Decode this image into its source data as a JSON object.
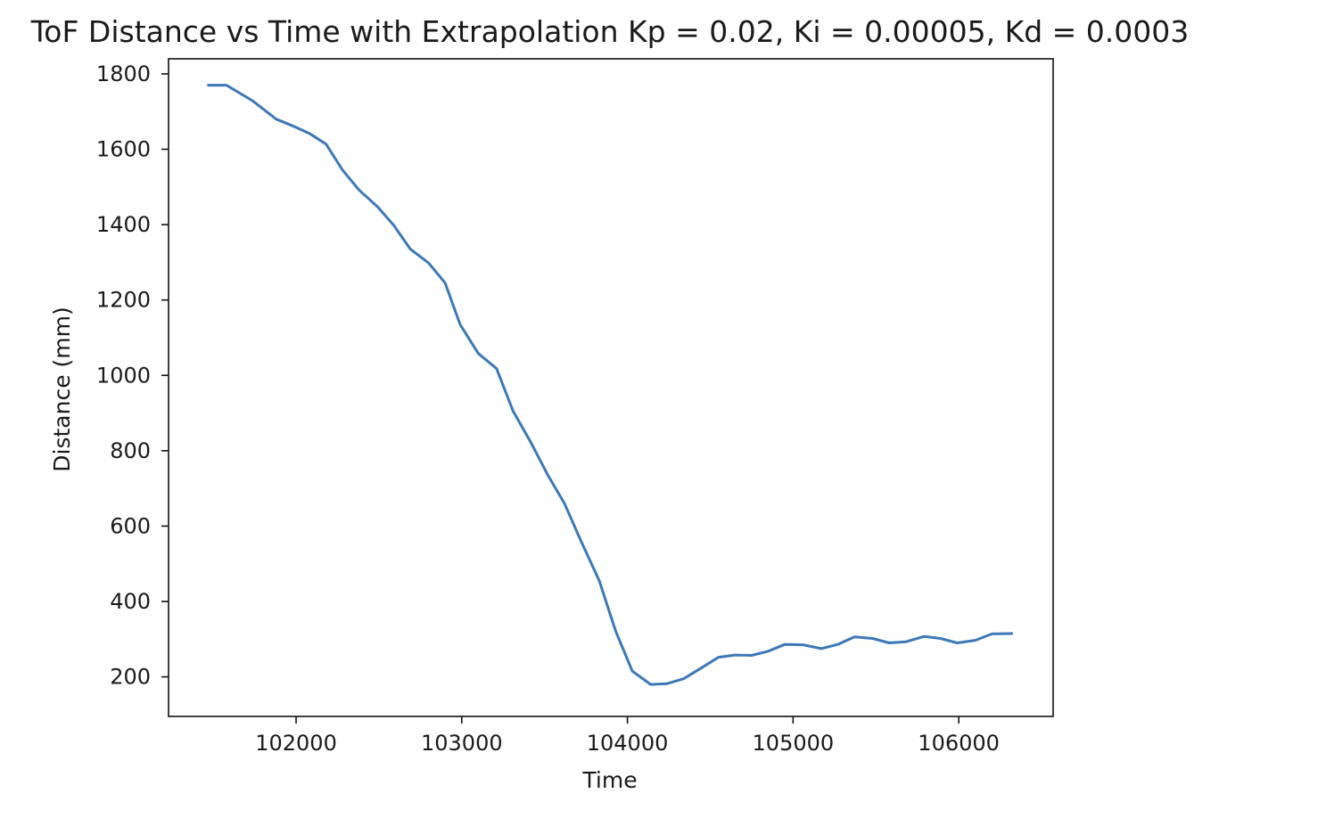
{
  "chart_data": {
    "type": "line",
    "title": "ToF Distance vs Time with Extrapolation Kp = 0.02, Ki = 0.00005, Kd = 0.0003",
    "xlabel": "Time",
    "ylabel": "Distance (mm)",
    "xlim": [
      101230,
      106570
    ],
    "ylim": [
      95,
      1840
    ],
    "xticks": [
      102000,
      103000,
      104000,
      105000,
      106000
    ],
    "yticks": [
      200,
      400,
      600,
      800,
      1000,
      1200,
      1400,
      1600,
      1800
    ],
    "grid": false,
    "legend": "none",
    "line_color": "#3c78b8",
    "series": [
      {
        "x": [
          101470,
          101580,
          101740,
          101880,
          101980,
          102080,
          102180,
          102280,
          102380,
          102490,
          102590,
          102690,
          102800,
          102900,
          102990,
          103100,
          103210,
          103310,
          103420,
          103520,
          103620,
          103720,
          103830,
          103930,
          104030,
          104140,
          104240,
          104340,
          104440,
          104550,
          104650,
          104750,
          104850,
          104950,
          105060,
          105170,
          105270,
          105370,
          105480,
          105580,
          105680,
          105790,
          105890,
          105990,
          106100,
          106200,
          106320
        ],
        "y": [
          1770,
          1770,
          1728,
          1680,
          1662,
          1642,
          1614,
          1545,
          1492,
          1448,
          1398,
          1335,
          1298,
          1245,
          1135,
          1058,
          1018,
          905,
          820,
          735,
          660,
          560,
          455,
          320,
          215,
          180,
          182,
          195,
          222,
          252,
          258,
          257,
          268,
          286,
          285,
          275,
          286,
          306,
          302,
          290,
          293,
          307,
          302,
          290,
          297,
          314,
          315
        ]
      }
    ]
  }
}
